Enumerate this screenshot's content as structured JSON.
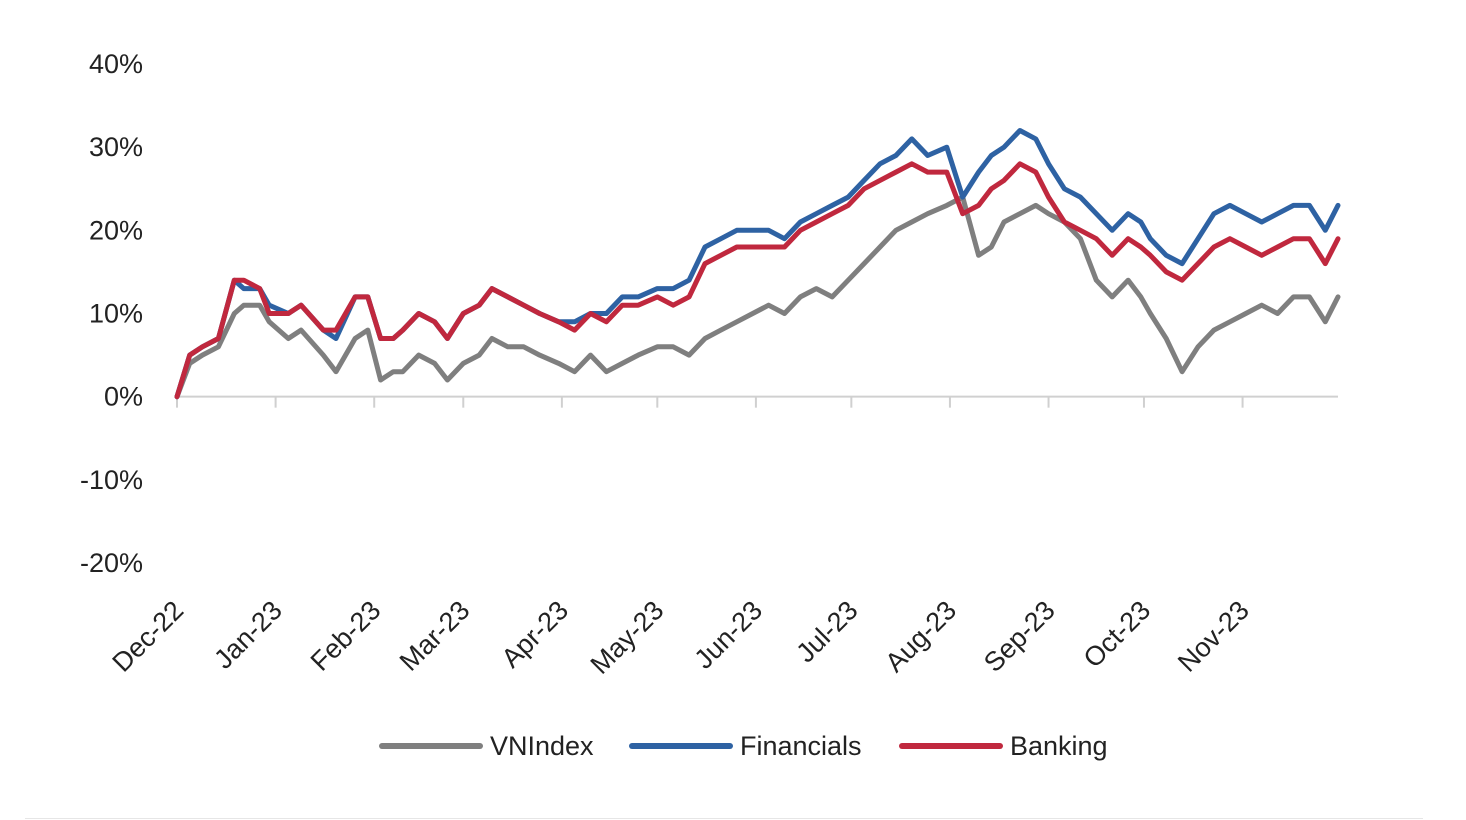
{
  "chart_data": {
    "type": "line",
    "title": "",
    "xlabel": "",
    "ylabel": "",
    "ylim": [
      -0.2,
      0.4
    ],
    "yticks": [
      "40%",
      "30%",
      "20%",
      "10%",
      "0%",
      "-10%",
      "-20%"
    ],
    "ytick_values": [
      0.4,
      0.3,
      0.2,
      0.1,
      0.0,
      -0.1,
      -0.2
    ],
    "xticks": [
      "Dec-22",
      "Jan-23",
      "Feb-23",
      "Mar-23",
      "Apr-23",
      "May-23",
      "Jun-23",
      "Jul-23",
      "Aug-23",
      "Sep-23",
      "Oct-23",
      "Nov-23"
    ],
    "xlim": [
      "2022-12-01",
      "2023-12-01"
    ],
    "grid": false,
    "legend_position": "bottom",
    "series": [
      {
        "name": "VNIndex",
        "color": "#7f7f7f",
        "x": [
          "2022-12-01",
          "2022-12-05",
          "2022-12-09",
          "2022-12-14",
          "2022-12-19",
          "2022-12-22",
          "2022-12-27",
          "2022-12-30",
          "2023-01-05",
          "2023-01-09",
          "2023-01-16",
          "2023-01-20",
          "2023-01-26",
          "2023-01-30",
          "2023-02-03",
          "2023-02-07",
          "2023-02-10",
          "2023-02-15",
          "2023-02-20",
          "2023-02-24",
          "2023-03-01",
          "2023-03-06",
          "2023-03-10",
          "2023-03-15",
          "2023-03-20",
          "2023-03-25",
          "2023-03-31",
          "2023-04-05",
          "2023-04-10",
          "2023-04-15",
          "2023-04-20",
          "2023-04-25",
          "2023-05-01",
          "2023-05-06",
          "2023-05-11",
          "2023-05-16",
          "2023-05-21",
          "2023-05-26",
          "2023-05-31",
          "2023-06-05",
          "2023-06-10",
          "2023-06-15",
          "2023-06-20",
          "2023-06-25",
          "2023-06-30",
          "2023-07-05",
          "2023-07-10",
          "2023-07-15",
          "2023-07-20",
          "2023-07-25",
          "2023-07-31",
          "2023-08-05",
          "2023-08-10",
          "2023-08-14",
          "2023-08-18",
          "2023-08-23",
          "2023-08-28",
          "2023-09-01",
          "2023-09-06",
          "2023-09-11",
          "2023-09-16",
          "2023-09-21",
          "2023-09-26",
          "2023-09-30",
          "2023-10-03",
          "2023-10-08",
          "2023-10-13",
          "2023-10-18",
          "2023-10-23",
          "2023-10-28",
          "2023-11-02",
          "2023-11-07",
          "2023-11-12",
          "2023-11-17",
          "2023-11-22",
          "2023-11-27",
          "2023-12-01"
        ],
        "values": [
          0.0,
          0.04,
          0.05,
          0.06,
          0.1,
          0.11,
          0.11,
          0.09,
          0.07,
          0.08,
          0.05,
          0.03,
          0.07,
          0.08,
          0.02,
          0.03,
          0.03,
          0.05,
          0.04,
          0.02,
          0.04,
          0.05,
          0.07,
          0.06,
          0.06,
          0.05,
          0.04,
          0.03,
          0.05,
          0.03,
          0.04,
          0.05,
          0.06,
          0.06,
          0.05,
          0.07,
          0.08,
          0.09,
          0.1,
          0.11,
          0.1,
          0.12,
          0.13,
          0.12,
          0.14,
          0.16,
          0.18,
          0.2,
          0.21,
          0.22,
          0.23,
          0.24,
          0.17,
          0.18,
          0.21,
          0.22,
          0.23,
          0.22,
          0.21,
          0.19,
          0.14,
          0.12,
          0.14,
          0.12,
          0.1,
          0.07,
          0.03,
          0.06,
          0.08,
          0.09,
          0.1,
          0.11,
          0.1,
          0.12,
          0.12,
          0.09,
          0.12
        ]
      },
      {
        "name": "Financials",
        "color": "#2e62a3",
        "x": [
          "2022-12-01",
          "2022-12-05",
          "2022-12-09",
          "2022-12-14",
          "2022-12-19",
          "2022-12-22",
          "2022-12-27",
          "2022-12-30",
          "2023-01-05",
          "2023-01-09",
          "2023-01-16",
          "2023-01-20",
          "2023-01-26",
          "2023-01-30",
          "2023-02-03",
          "2023-02-07",
          "2023-02-10",
          "2023-02-15",
          "2023-02-20",
          "2023-02-24",
          "2023-03-01",
          "2023-03-06",
          "2023-03-10",
          "2023-03-15",
          "2023-03-20",
          "2023-03-25",
          "2023-03-31",
          "2023-04-05",
          "2023-04-10",
          "2023-04-15",
          "2023-04-20",
          "2023-04-25",
          "2023-05-01",
          "2023-05-06",
          "2023-05-11",
          "2023-05-16",
          "2023-05-21",
          "2023-05-26",
          "2023-05-31",
          "2023-06-05",
          "2023-06-10",
          "2023-06-15",
          "2023-06-20",
          "2023-06-25",
          "2023-06-30",
          "2023-07-05",
          "2023-07-10",
          "2023-07-15",
          "2023-07-20",
          "2023-07-25",
          "2023-07-31",
          "2023-08-05",
          "2023-08-10",
          "2023-08-14",
          "2023-08-18",
          "2023-08-23",
          "2023-08-28",
          "2023-09-01",
          "2023-09-06",
          "2023-09-11",
          "2023-09-16",
          "2023-09-21",
          "2023-09-26",
          "2023-09-30",
          "2023-10-03",
          "2023-10-08",
          "2023-10-13",
          "2023-10-18",
          "2023-10-23",
          "2023-10-28",
          "2023-11-02",
          "2023-11-07",
          "2023-11-12",
          "2023-11-17",
          "2023-11-22",
          "2023-11-27",
          "2023-12-01"
        ],
        "values": [
          0.0,
          0.05,
          0.06,
          0.07,
          0.14,
          0.13,
          0.13,
          0.11,
          0.1,
          0.11,
          0.08,
          0.07,
          0.12,
          0.12,
          0.07,
          0.07,
          0.08,
          0.1,
          0.09,
          0.07,
          0.1,
          0.11,
          0.13,
          0.12,
          0.11,
          0.1,
          0.09,
          0.09,
          0.1,
          0.1,
          0.12,
          0.12,
          0.13,
          0.13,
          0.14,
          0.18,
          0.19,
          0.2,
          0.2,
          0.2,
          0.19,
          0.21,
          0.22,
          0.23,
          0.24,
          0.26,
          0.28,
          0.29,
          0.31,
          0.29,
          0.3,
          0.24,
          0.27,
          0.29,
          0.3,
          0.32,
          0.31,
          0.28,
          0.25,
          0.24,
          0.22,
          0.2,
          0.22,
          0.21,
          0.19,
          0.17,
          0.16,
          0.19,
          0.22,
          0.23,
          0.22,
          0.21,
          0.22,
          0.23,
          0.23,
          0.2,
          0.23
        ]
      },
      {
        "name": "Banking",
        "color": "#c0283e",
        "x": [
          "2022-12-01",
          "2022-12-05",
          "2022-12-09",
          "2022-12-14",
          "2022-12-19",
          "2022-12-22",
          "2022-12-27",
          "2022-12-30",
          "2023-01-05",
          "2023-01-09",
          "2023-01-16",
          "2023-01-20",
          "2023-01-26",
          "2023-01-30",
          "2023-02-03",
          "2023-02-07",
          "2023-02-10",
          "2023-02-15",
          "2023-02-20",
          "2023-02-24",
          "2023-03-01",
          "2023-03-06",
          "2023-03-10",
          "2023-03-15",
          "2023-03-20",
          "2023-03-25",
          "2023-03-31",
          "2023-04-05",
          "2023-04-10",
          "2023-04-15",
          "2023-04-20",
          "2023-04-25",
          "2023-05-01",
          "2023-05-06",
          "2023-05-11",
          "2023-05-16",
          "2023-05-21",
          "2023-05-26",
          "2023-05-31",
          "2023-06-05",
          "2023-06-10",
          "2023-06-15",
          "2023-06-20",
          "2023-06-25",
          "2023-06-30",
          "2023-07-05",
          "2023-07-10",
          "2023-07-15",
          "2023-07-20",
          "2023-07-25",
          "2023-07-31",
          "2023-08-05",
          "2023-08-10",
          "2023-08-14",
          "2023-08-18",
          "2023-08-23",
          "2023-08-28",
          "2023-09-01",
          "2023-09-06",
          "2023-09-11",
          "2023-09-16",
          "2023-09-21",
          "2023-09-26",
          "2023-09-30",
          "2023-10-03",
          "2023-10-08",
          "2023-10-13",
          "2023-10-18",
          "2023-10-23",
          "2023-10-28",
          "2023-11-02",
          "2023-11-07",
          "2023-11-12",
          "2023-11-17",
          "2023-11-22",
          "2023-11-27",
          "2023-12-01"
        ],
        "values": [
          0.0,
          0.05,
          0.06,
          0.07,
          0.14,
          0.14,
          0.13,
          0.1,
          0.1,
          0.11,
          0.08,
          0.08,
          0.12,
          0.12,
          0.07,
          0.07,
          0.08,
          0.1,
          0.09,
          0.07,
          0.1,
          0.11,
          0.13,
          0.12,
          0.11,
          0.1,
          0.09,
          0.08,
          0.1,
          0.09,
          0.11,
          0.11,
          0.12,
          0.11,
          0.12,
          0.16,
          0.17,
          0.18,
          0.18,
          0.18,
          0.18,
          0.2,
          0.21,
          0.22,
          0.23,
          0.25,
          0.26,
          0.27,
          0.28,
          0.27,
          0.27,
          0.22,
          0.23,
          0.25,
          0.26,
          0.28,
          0.27,
          0.24,
          0.21,
          0.2,
          0.19,
          0.17,
          0.19,
          0.18,
          0.17,
          0.15,
          0.14,
          0.16,
          0.18,
          0.19,
          0.18,
          0.17,
          0.18,
          0.19,
          0.19,
          0.16,
          0.19
        ]
      }
    ]
  }
}
